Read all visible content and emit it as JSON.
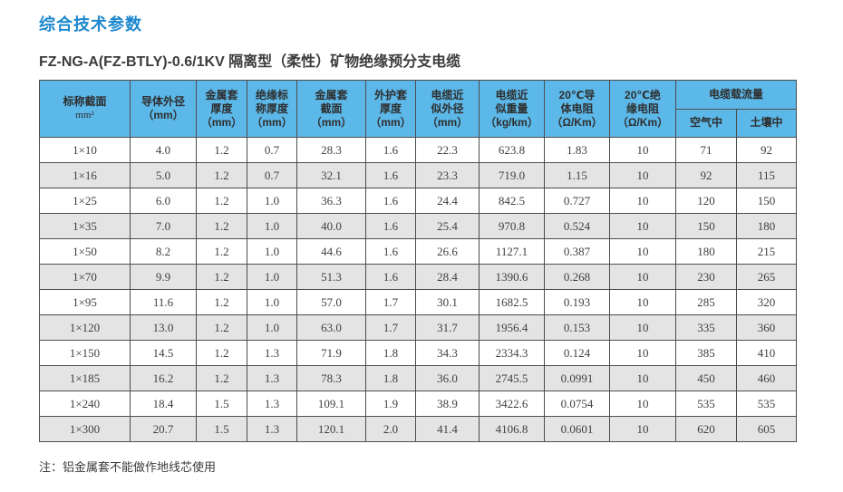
{
  "page": {
    "title": "综合技术参数",
    "subtitle": "FZ-NG-A(FZ-BTLY)-0.6/1KV 隔离型（柔性）矿物绝缘预分支电缆",
    "note": "注：铝金属套不能做作地线芯使用"
  },
  "colors": {
    "title_blue": "#1c87ce",
    "header_bg": "#5cb8e8",
    "alt_row_bg": "#e4e4e4",
    "border": "#4d4d4d"
  },
  "table": {
    "columns": [
      {
        "label": "标称截面",
        "unit": "mm²"
      },
      {
        "label": "导体外径\n（mm）"
      },
      {
        "label": "金属套\n厚度\n（mm）"
      },
      {
        "label": "绝缘标\n称厚度\n（mm）"
      },
      {
        "label": "金属套\n截面\n（mm）"
      },
      {
        "label": "外护套\n厚度\n（mm）"
      },
      {
        "label": "电缆近\n似外径\n（mm）"
      },
      {
        "label": "电缆近\n似重量\n（kg/km）"
      },
      {
        "label": "20℃导\n体电阻\n（Ω/Km）"
      },
      {
        "label": "20℃绝\n缘电阻\n（Ω/Km）"
      }
    ],
    "ampacity_group": {
      "label": "电缆载流量",
      "sub": [
        "空气中",
        "土壤中"
      ]
    },
    "rows": [
      [
        "1×10",
        "4.0",
        "1.2",
        "0.7",
        "28.3",
        "1.6",
        "22.3",
        "623.8",
        "1.83",
        "10",
        "71",
        "92"
      ],
      [
        "1×16",
        "5.0",
        "1.2",
        "0.7",
        "32.1",
        "1.6",
        "23.3",
        "719.0",
        "1.15",
        "10",
        "92",
        "115"
      ],
      [
        "1×25",
        "6.0",
        "1.2",
        "1.0",
        "36.3",
        "1.6",
        "24.4",
        "842.5",
        "0.727",
        "10",
        "120",
        "150"
      ],
      [
        "1×35",
        "7.0",
        "1.2",
        "1.0",
        "40.0",
        "1.6",
        "25.4",
        "970.8",
        "0.524",
        "10",
        "150",
        "180"
      ],
      [
        "1×50",
        "8.2",
        "1.2",
        "1.0",
        "44.6",
        "1.6",
        "26.6",
        "1127.1",
        "0.387",
        "10",
        "180",
        "215"
      ],
      [
        "1×70",
        "9.9",
        "1.2",
        "1.0",
        "51.3",
        "1.6",
        "28.4",
        "1390.6",
        "0.268",
        "10",
        "230",
        "265"
      ],
      [
        "1×95",
        "11.6",
        "1.2",
        "1.0",
        "57.0",
        "1.7",
        "30.1",
        "1682.5",
        "0.193",
        "10",
        "285",
        "320"
      ],
      [
        "1×120",
        "13.0",
        "1.2",
        "1.0",
        "63.0",
        "1.7",
        "31.7",
        "1956.4",
        "0.153",
        "10",
        "335",
        "360"
      ],
      [
        "1×150",
        "14.5",
        "1.2",
        "1.3",
        "71.9",
        "1.8",
        "34.3",
        "2334.3",
        "0.124",
        "10",
        "385",
        "410"
      ],
      [
        "1×185",
        "16.2",
        "1.2",
        "1.3",
        "78.3",
        "1.8",
        "36.0",
        "2745.5",
        "0.0991",
        "10",
        "450",
        "460"
      ],
      [
        "1×240",
        "18.4",
        "1.5",
        "1.3",
        "109.1",
        "1.9",
        "38.9",
        "3422.6",
        "0.0754",
        "10",
        "535",
        "535"
      ],
      [
        "1×300",
        "20.7",
        "1.5",
        "1.3",
        "120.1",
        "2.0",
        "41.4",
        "4106.8",
        "0.0601",
        "10",
        "620",
        "605"
      ]
    ]
  }
}
